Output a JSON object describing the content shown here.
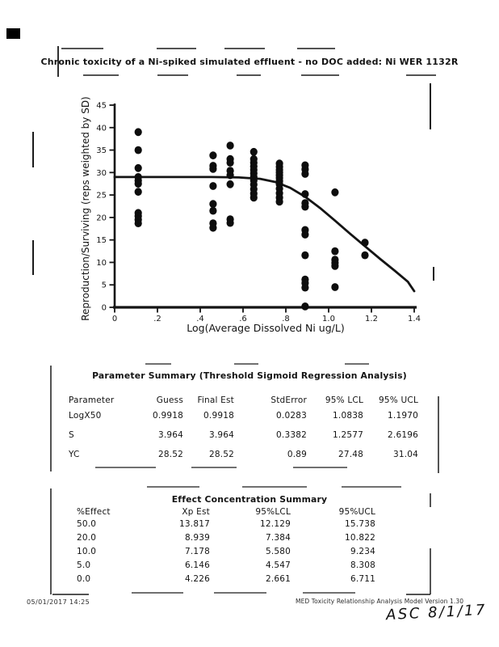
{
  "page": {
    "title": "Chronic toxicity of a Ni-spiked simulated effluent - no DOC added: Ni WER 1132R",
    "footer_left": "05/01/2017   14:25",
    "footer_right": "MED Toxicity Relationship Analysis Model   Version 1.30",
    "handwriting": "ASC 8/1/17"
  },
  "chart_data": {
    "type": "scatter",
    "title": "",
    "xlabel": "Log(Average Dissolved Ni ug/L)",
    "ylabel": "Reproduction/Surviving (reps weighted by SD)",
    "xlim": [
      0,
      1.4
    ],
    "ylim": [
      0,
      45
    ],
    "grid": false,
    "x_tick_labels": [
      "0",
      ".2",
      ".4",
      ".6",
      ".8",
      "1.0",
      "1.2",
      "1.4"
    ],
    "x_tick_values": [
      0,
      0.2,
      0.4,
      0.6,
      0.8,
      1.0,
      1.2,
      1.4
    ],
    "y_tick_values": [
      0,
      5,
      10,
      15,
      20,
      25,
      30,
      35,
      40,
      45
    ],
    "series": [
      {
        "name": "observed reproduction (reps weighted by SD)",
        "type": "scatter",
        "points": [
          [
            0.11,
            39
          ],
          [
            0.11,
            35
          ],
          [
            0.11,
            31
          ],
          [
            0.11,
            29
          ],
          [
            0.11,
            28.2
          ],
          [
            0.11,
            27.5
          ],
          [
            0.11,
            25.7
          ],
          [
            0.11,
            21
          ],
          [
            0.11,
            20.3
          ],
          [
            0.11,
            19.5
          ],
          [
            0.11,
            18.7
          ],
          [
            0.46,
            33.8
          ],
          [
            0.46,
            31.5
          ],
          [
            0.46,
            30.8
          ],
          [
            0.46,
            27
          ],
          [
            0.46,
            23
          ],
          [
            0.46,
            21.5
          ],
          [
            0.46,
            18.7
          ],
          [
            0.46,
            17.7
          ],
          [
            0.54,
            36
          ],
          [
            0.54,
            33
          ],
          [
            0.54,
            32.2
          ],
          [
            0.54,
            30.4
          ],
          [
            0.54,
            29.4
          ],
          [
            0.54,
            27.4
          ],
          [
            0.54,
            19.6
          ],
          [
            0.54,
            18.8
          ],
          [
            0.65,
            34.6
          ],
          [
            0.65,
            33
          ],
          [
            0.65,
            32.2
          ],
          [
            0.65,
            31.4
          ],
          [
            0.65,
            30.6
          ],
          [
            0.65,
            29.8
          ],
          [
            0.65,
            29
          ],
          [
            0.65,
            28.2
          ],
          [
            0.65,
            27.3
          ],
          [
            0.65,
            26.3
          ],
          [
            0.65,
            25.3
          ],
          [
            0.65,
            24.4
          ],
          [
            0.77,
            32
          ],
          [
            0.77,
            31.3
          ],
          [
            0.77,
            30.6
          ],
          [
            0.77,
            30
          ],
          [
            0.77,
            29.4
          ],
          [
            0.77,
            28.8
          ],
          [
            0.77,
            28.1
          ],
          [
            0.77,
            27.4
          ],
          [
            0.77,
            26.4
          ],
          [
            0.77,
            25.4
          ],
          [
            0.77,
            24.4
          ],
          [
            0.77,
            23.5
          ],
          [
            0.89,
            31.6
          ],
          [
            0.89,
            30.7
          ],
          [
            0.89,
            29.7
          ],
          [
            0.89,
            25.2
          ],
          [
            0.89,
            23.2
          ],
          [
            0.89,
            22.4
          ],
          [
            0.89,
            17.2
          ],
          [
            0.89,
            16.2
          ],
          [
            0.89,
            11.6
          ],
          [
            0.89,
            6.2
          ],
          [
            0.89,
            5.4
          ],
          [
            0.89,
            4.4
          ],
          [
            0.89,
            0.2
          ],
          [
            1.03,
            25.6
          ],
          [
            1.03,
            12.5
          ],
          [
            1.03,
            10.6
          ],
          [
            1.03,
            9.9
          ],
          [
            1.03,
            9.2
          ],
          [
            1.03,
            4.5
          ],
          [
            1.17,
            14.4
          ],
          [
            1.17,
            11.6
          ]
        ]
      },
      {
        "name": "threshold sigmoid regression fit",
        "type": "line",
        "points": [
          [
            0,
            29
          ],
          [
            0.45,
            29
          ],
          [
            0.58,
            28.9
          ],
          [
            0.68,
            28.6
          ],
          [
            0.75,
            27.9
          ],
          [
            0.82,
            26.6
          ],
          [
            0.89,
            24.6
          ],
          [
            0.96,
            22.1
          ],
          [
            1.03,
            19.3
          ],
          [
            1.1,
            16.4
          ],
          [
            1.17,
            13.6
          ],
          [
            1.24,
            10.8
          ],
          [
            1.31,
            8.1
          ],
          [
            1.37,
            5.7
          ],
          [
            1.4,
            3.6
          ]
        ]
      }
    ]
  },
  "parameter_summary": {
    "title": "Parameter Summary (Threshold Sigmoid Regression Analysis)",
    "columns": [
      "Parameter",
      "Guess",
      "Final Est",
      "StdError",
      "95% LCL",
      "95% UCL"
    ],
    "rows": [
      [
        "LogX50",
        "0.9918",
        "0.9918",
        "0.0283",
        "1.0838",
        "1.1970"
      ],
      [
        "S",
        "3.964",
        "3.964",
        "0.3382",
        "1.2577",
        "2.6196"
      ],
      [
        "YC",
        "28.52",
        "28.52",
        "0.89",
        "27.48",
        "31.04"
      ]
    ]
  },
  "effect_concentration_summary": {
    "title": "Effect Concentration Summary",
    "columns": [
      "%Effect",
      "Xp Est",
      "95%LCL",
      "95%UCL"
    ],
    "rows": [
      [
        "50.0",
        "13.817",
        "12.129",
        "15.738"
      ],
      [
        "20.0",
        "8.939",
        "7.384",
        "10.822"
      ],
      [
        "10.0",
        "7.178",
        "5.580",
        "9.234"
      ],
      [
        "5.0",
        "6.146",
        "4.547",
        "8.308"
      ],
      [
        "0.0",
        "4.226",
        "2.661",
        "6.711"
      ]
    ]
  },
  "colors": {
    "ink": "#141414",
    "paper": "#ffffff"
  }
}
